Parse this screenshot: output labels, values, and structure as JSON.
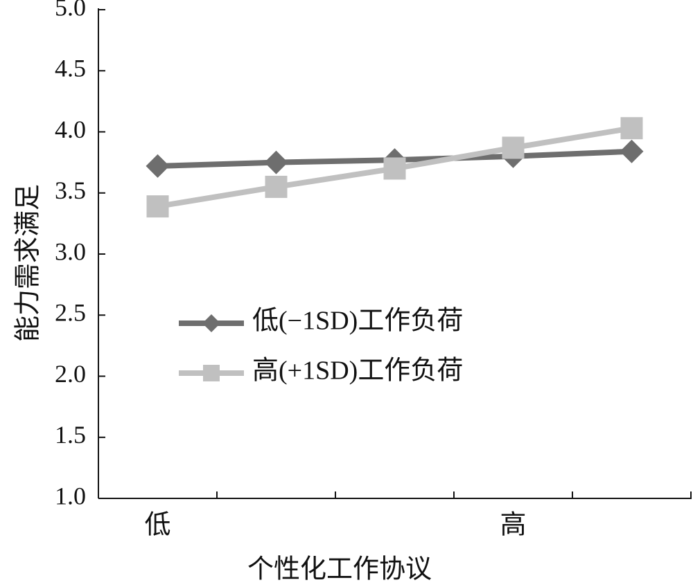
{
  "chart_data": {
    "type": "line",
    "x_label": "个性化工作协议",
    "y_label": "能力需求满足",
    "categories": [
      "低",
      null,
      null,
      "高",
      null
    ],
    "series": [
      {
        "name": "低(−1SD)工作负荷",
        "color": "#6e6e6e",
        "marker": "diamond",
        "values": [
          3.72,
          3.75,
          3.77,
          3.8,
          3.84
        ]
      },
      {
        "name": "高(+1SD)工作负荷",
        "color": "#c0c0c0",
        "marker": "square",
        "values": [
          3.39,
          3.55,
          3.7,
          3.87,
          4.03
        ]
      }
    ],
    "ylim": [
      1,
      5
    ],
    "yticks": [
      {
        "value": 1,
        "label": "1.0"
      },
      {
        "value": 1.5,
        "label": "1.5"
      },
      {
        "value": 2,
        "label": "2.0"
      },
      {
        "value": 2.5,
        "label": "2.5"
      },
      {
        "value": 3,
        "label": "3.0"
      },
      {
        "value": 3.5,
        "label": "3.5"
      },
      {
        "value": 4,
        "label": "4.0"
      },
      {
        "value": 4.5,
        "label": "4.5"
      },
      {
        "value": 5,
        "label": "5.0"
      }
    ],
    "legend_position": "center-left"
  }
}
